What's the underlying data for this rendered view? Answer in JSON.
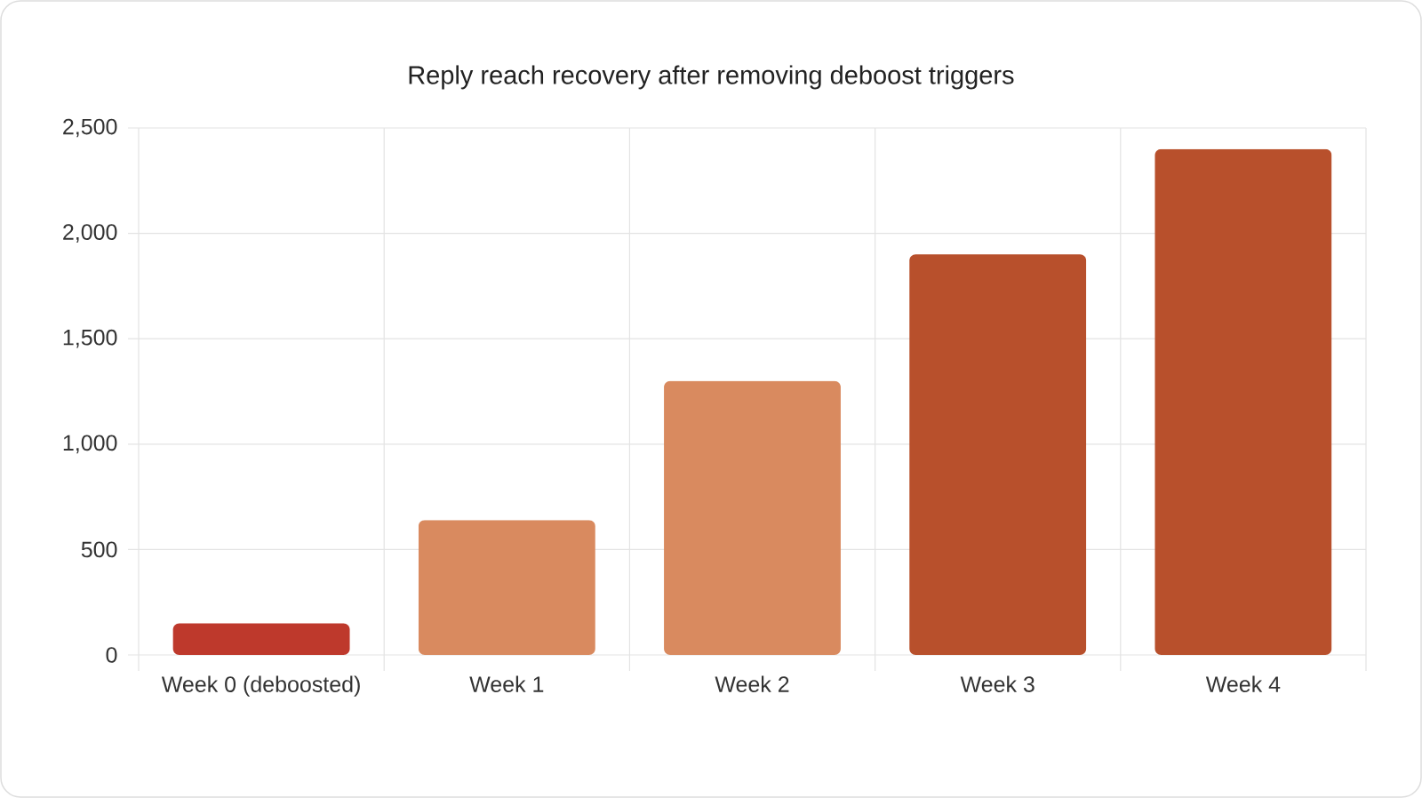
{
  "chart_data": {
    "type": "bar",
    "title": "Reply reach recovery after removing deboost triggers",
    "categories": [
      "Week 0 (deboosted)",
      "Week 1",
      "Week 2",
      "Week 3",
      "Week 4"
    ],
    "values": [
      150,
      640,
      1300,
      1900,
      2400
    ],
    "colors": [
      "#be392c",
      "#d98a5f",
      "#d98a5f",
      "#b8502c",
      "#b8502c"
    ],
    "ylim": [
      0,
      2500
    ],
    "yticks": [
      0,
      500,
      {
        "value": 1000,
        "label": "1,000"
      },
      {
        "value": 1500,
        "label": "1,500"
      },
      {
        "value": 2000,
        "label": "2,000"
      },
      {
        "value": 2500,
        "label": "2,500"
      }
    ],
    "grid": true
  }
}
